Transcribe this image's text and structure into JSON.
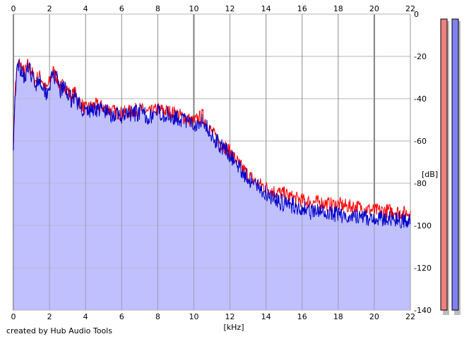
{
  "footer": {
    "credit": "created by Hub Audio Tools"
  },
  "chart_data": {
    "type": "area",
    "title": "",
    "xlabel": "[kHz]",
    "ylabel": "[dB]",
    "xlim": [
      0,
      22
    ],
    "ylim": [
      -140,
      0
    ],
    "x_ticks": [
      0,
      2,
      4,
      6,
      8,
      10,
      12,
      14,
      16,
      18,
      20,
      22
    ],
    "x_tick_labels": [
      "0",
      "2",
      "4",
      "6",
      "8",
      "10",
      "12",
      "14",
      "16",
      "18",
      "20",
      "22"
    ],
    "y_ticks": [
      0,
      -20,
      -40,
      -60,
      -80,
      -100,
      -120,
      -140
    ],
    "y_tick_labels": [
      "0",
      "-20",
      "-40",
      "-60",
      "-80",
      "-100",
      "-120",
      "-140"
    ],
    "grid": true,
    "colors": {
      "background": "#ffffff",
      "grid": "#b4b4b4",
      "grid_major": "#808080",
      "fill": "#c0c0ff",
      "channel_1": "#ff0000",
      "channel_2": "#0000c8",
      "meter_1": "#f08080",
      "meter_2": "#8080f0",
      "meter_shadow": "#bdbdbd"
    },
    "series": [
      {
        "x": [
          0,
          0.1,
          0.2,
          0.3,
          0.4,
          0.6,
          0.8,
          1.0,
          1.2,
          1.4,
          1.6,
          1.8,
          2.0,
          2.2,
          2.4,
          2.6,
          2.8,
          3.0,
          3.2,
          3.4,
          3.6,
          3.8,
          4.0,
          4.5,
          5.0,
          5.5,
          6.0,
          6.5,
          7.0,
          7.5,
          8.0,
          8.5,
          9.0,
          9.5,
          10.0,
          10.5,
          11.0,
          11.5,
          12.0,
          12.5,
          13.0,
          13.5,
          14.0,
          14.5,
          15.0,
          15.5,
          16.0,
          16.5,
          17.0,
          17.5,
          18.0,
          18.5,
          19.0,
          19.5,
          20.0,
          20.5,
          21.0,
          21.5,
          22.0
        ],
        "values": [
          -58,
          -35,
          -26,
          -23,
          -24,
          -28,
          -24,
          -27,
          -32,
          -29,
          -31,
          -36,
          -32,
          -27,
          -30,
          -35,
          -33,
          -36,
          -39,
          -37,
          -41,
          -43,
          -45,
          -43,
          -44,
          -46,
          -47,
          -46,
          -45,
          -47,
          -45,
          -46,
          -47,
          -49,
          -51,
          -48,
          -56,
          -61,
          -65,
          -71,
          -76,
          -80,
          -82,
          -84,
          -85,
          -87,
          -88,
          -89,
          -89,
          -90,
          -90,
          -91,
          -91,
          -92,
          -93,
          -93,
          -93,
          -94,
          -94
        ]
      },
      {
        "x": [
          0,
          0.1,
          0.2,
          0.3,
          0.4,
          0.6,
          0.8,
          1.0,
          1.2,
          1.4,
          1.6,
          1.8,
          2.0,
          2.2,
          2.4,
          2.6,
          2.8,
          3.0,
          3.2,
          3.4,
          3.6,
          3.8,
          4.0,
          4.5,
          5.0,
          5.5,
          6.0,
          6.5,
          7.0,
          7.5,
          8.0,
          8.5,
          9.0,
          9.5,
          10.0,
          10.5,
          11.0,
          11.5,
          12.0,
          12.5,
          13.0,
          13.5,
          14.0,
          14.5,
          15.0,
          15.5,
          16.0,
          16.5,
          17.0,
          17.5,
          18.0,
          18.5,
          19.0,
          19.5,
          20.0,
          20.5,
          21.0,
          21.5,
          22.0
        ],
        "values": [
          -60,
          -36,
          -27,
          -24,
          -25,
          -29,
          -25,
          -28,
          -33,
          -30,
          -32,
          -37,
          -33,
          -28,
          -31,
          -36,
          -34,
          -37,
          -40,
          -38,
          -42,
          -44,
          -46,
          -44,
          -45,
          -47,
          -48,
          -47,
          -46,
          -48,
          -46,
          -47,
          -48,
          -50,
          -52,
          -49,
          -57,
          -62,
          -66,
          -72,
          -77,
          -81,
          -84,
          -87,
          -89,
          -90,
          -91,
          -93,
          -93,
          -94,
          -94,
          -95,
          -95,
          -96,
          -96,
          -96,
          -96,
          -97,
          -97
        ]
      }
    ],
    "meters": [
      {
        "value": -140
      },
      {
        "value": -140
      }
    ]
  }
}
